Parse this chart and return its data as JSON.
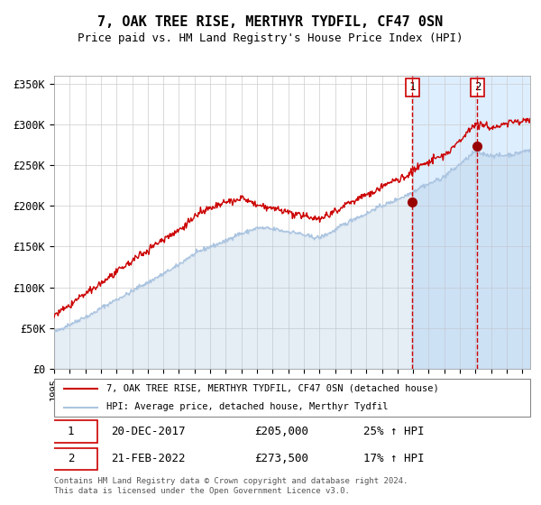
{
  "title": "7, OAK TREE RISE, MERTHYR TYDFIL, CF47 0SN",
  "subtitle": "Price paid vs. HM Land Registry's House Price Index (HPI)",
  "xlim_start": 1995.0,
  "xlim_end": 2025.5,
  "ylim_min": 0,
  "ylim_max": 360000,
  "yticks": [
    0,
    50000,
    100000,
    150000,
    200000,
    250000,
    300000,
    350000
  ],
  "ytick_labels": [
    "£0",
    "£50K",
    "£100K",
    "£150K",
    "£200K",
    "£250K",
    "£300K",
    "£350K"
  ],
  "hpi_color": "#aac4e0",
  "price_color": "#cc0000",
  "dot_color": "#990000",
  "shade_color": "#ddeeff",
  "grid_color": "#cccccc",
  "background_color": "#ffffff",
  "sale1_date": 2017.96,
  "sale1_price": 205000,
  "sale1_label": "1",
  "sale2_date": 2022.12,
  "sale2_price": 273500,
  "sale2_label": "2",
  "legend_house": "7, OAK TREE RISE, MERTHYR TYDFIL, CF47 0SN (detached house)",
  "legend_hpi": "HPI: Average price, detached house, Merthyr Tydfil",
  "table_row1_num": "1",
  "table_row1_date": "20-DEC-2017",
  "table_row1_price": "£205,000",
  "table_row1_hpi": "25% ↑ HPI",
  "table_row2_num": "2",
  "table_row2_date": "21-FEB-2022",
  "table_row2_price": "£273,500",
  "table_row2_hpi": "17% ↑ HPI",
  "footer": "Contains HM Land Registry data © Crown copyright and database right 2024.\nThis data is licensed under the Open Government Licence v3.0."
}
